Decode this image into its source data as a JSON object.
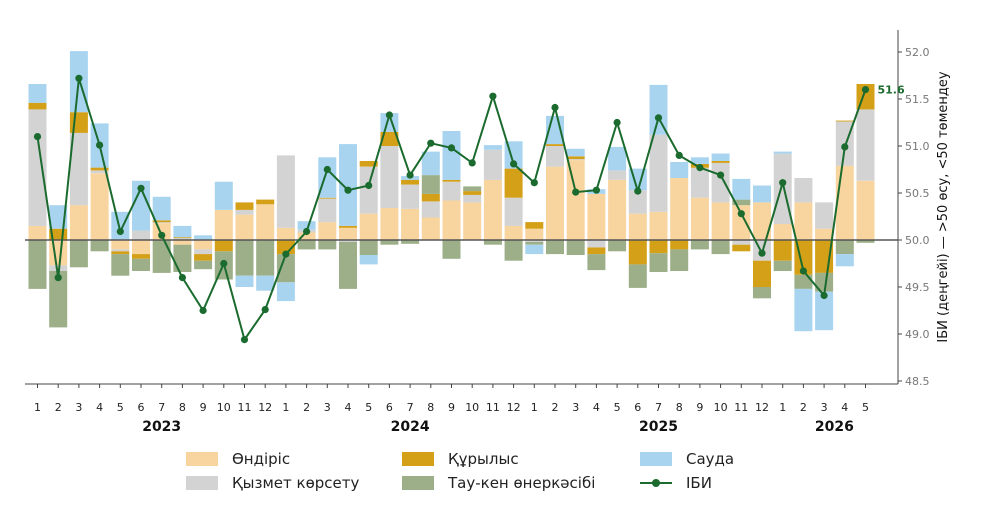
{
  "chart_data": {
    "type": "bar",
    "ylabel": "ІБИ (деңгейі) — >50 өсу, <50 төмендеу",
    "ylim": [
      48.5,
      52.2
    ],
    "yticks": [
      "48.5",
      "49.0",
      "49.5",
      "50.0",
      "50.5",
      "51.0",
      "51.5",
      "52.0"
    ],
    "baseline": 50.0,
    "month_labels": [
      "1",
      "2",
      "3",
      "4",
      "5",
      "6",
      "7",
      "8",
      "9",
      "10",
      "11",
      "12",
      "1",
      "2",
      "3",
      "4",
      "5",
      "6",
      "7",
      "8",
      "9",
      "10",
      "11",
      "12",
      "1",
      "2",
      "3",
      "4",
      "5",
      "6",
      "7",
      "8",
      "9",
      "10",
      "11",
      "12",
      "1",
      "2",
      "3",
      "4",
      "5"
    ],
    "years": [
      {
        "label": "2023",
        "center_index": 6
      },
      {
        "label": "2024",
        "center_index": 18
      },
      {
        "label": "2025",
        "center_index": 30
      },
      {
        "label": "2026",
        "center_index": 38.5
      }
    ],
    "colors": {
      "production": "#f8d49e",
      "services": "#d3d3d3",
      "construction": "#d4a017",
      "mining": "#9caf88",
      "trade": "#a8d4f0",
      "index": "#1b6b2f"
    },
    "legend": [
      {
        "key": "production",
        "label": "Өндіріс",
        "kind": "bar"
      },
      {
        "key": "services",
        "label": "Қызмет көрсету",
        "kind": "bar"
      },
      {
        "key": "construction",
        "label": "Құрылыс",
        "kind": "bar"
      },
      {
        "key": "mining",
        "label": "Тау-кен өнеркәсібі",
        "kind": "bar"
      },
      {
        "key": "trade",
        "label": "Сауда",
        "kind": "bar"
      },
      {
        "key": "index",
        "label": "ІБИ",
        "kind": "line"
      }
    ],
    "last_value_label": "51.6",
    "series": [
      {
        "key": "production",
        "name": "Өндіріс",
        "values": [
          0.15,
          -0.27,
          0.37,
          0.71,
          -0.1,
          -0.15,
          0.18,
          -0.05,
          -0.1,
          0.32,
          0.27,
          0.38,
          0.13,
          0.08,
          0.19,
          0.13,
          0.28,
          0.34,
          0.33,
          0.24,
          0.42,
          0.4,
          0.64,
          0.15,
          0.12,
          0.78,
          0.85,
          0.49,
          0.64,
          0.28,
          0.3,
          0.66,
          0.45,
          0.4,
          0.37,
          0.4,
          0.17,
          0.4,
          0.12,
          0.79,
          0.63
        ]
      },
      {
        "key": "services",
        "name": "Қызмет көрсету",
        "values": [
          1.24,
          -0.06,
          0.77,
          0.03,
          -0.02,
          0.1,
          0.01,
          0.02,
          -0.05,
          0.0,
          0.05,
          0.0,
          0.77,
          0.03,
          0.25,
          -0.02,
          0.5,
          0.66,
          0.26,
          0.17,
          0.2,
          0.08,
          0.32,
          0.3,
          -0.02,
          0.22,
          0.01,
          -0.08,
          0.1,
          0.25,
          0.82,
          0.0,
          0.32,
          0.42,
          -0.05,
          -0.22,
          0.75,
          0.26,
          0.28,
          0.47,
          0.76
        ]
      },
      {
        "key": "construction",
        "name": "Құрылыс",
        "values": [
          0.07,
          0.12,
          0.22,
          0.03,
          -0.03,
          -0.05,
          0.02,
          0.01,
          -0.07,
          -0.12,
          0.08,
          0.05,
          -0.15,
          0.0,
          0.01,
          0.02,
          0.06,
          0.15,
          0.05,
          0.08,
          0.02,
          0.04,
          0.0,
          0.31,
          0.07,
          0.02,
          0.03,
          -0.07,
          0.0,
          -0.26,
          -0.14,
          -0.1,
          0.04,
          0.02,
          -0.07,
          -0.28,
          -0.22,
          -0.37,
          -0.35,
          0.01,
          0.27
        ]
      },
      {
        "key": "mining",
        "name": "Тау-кен өнеркәсібі",
        "values": [
          -0.52,
          -0.6,
          -0.29,
          -0.12,
          -0.23,
          -0.13,
          -0.35,
          -0.29,
          -0.09,
          -0.3,
          -0.38,
          -0.38,
          -0.3,
          -0.1,
          -0.1,
          -0.5,
          -0.16,
          -0.05,
          -0.04,
          0.2,
          -0.2,
          0.05,
          -0.05,
          -0.22,
          -0.03,
          -0.15,
          -0.16,
          -0.17,
          -0.12,
          -0.25,
          -0.2,
          -0.23,
          -0.1,
          -0.15,
          0.06,
          -0.12,
          -0.11,
          -0.15,
          -0.2,
          -0.15,
          -0.03
        ]
      },
      {
        "key": "trade",
        "name": "Сауда",
        "values": [
          0.2,
          0.25,
          0.65,
          0.47,
          0.3,
          0.53,
          0.25,
          0.12,
          0.05,
          0.3,
          -0.12,
          -0.16,
          -0.2,
          0.09,
          0.43,
          0.87,
          -0.1,
          0.2,
          0.04,
          0.25,
          0.52,
          0.0,
          0.05,
          0.29,
          -0.1,
          0.3,
          0.08,
          0.05,
          0.25,
          0.23,
          0.53,
          0.17,
          0.07,
          0.08,
          0.22,
          0.18,
          0.02,
          -0.45,
          -0.41,
          -0.13,
          0.0
        ]
      },
      {
        "key": "index",
        "name": "ІБИ",
        "values": [
          51.1,
          49.6,
          51.72,
          51.01,
          50.09,
          50.55,
          50.05,
          49.6,
          49.25,
          49.75,
          48.94,
          49.26,
          49.85,
          50.09,
          50.75,
          50.53,
          50.58,
          51.33,
          50.69,
          51.03,
          50.98,
          50.82,
          51.53,
          50.81,
          50.61,
          51.41,
          50.51,
          50.53,
          51.25,
          50.52,
          51.3,
          50.9,
          50.77,
          50.69,
          50.28,
          49.86,
          50.61,
          49.67,
          49.41,
          50.99,
          51.6
        ]
      }
    ]
  }
}
